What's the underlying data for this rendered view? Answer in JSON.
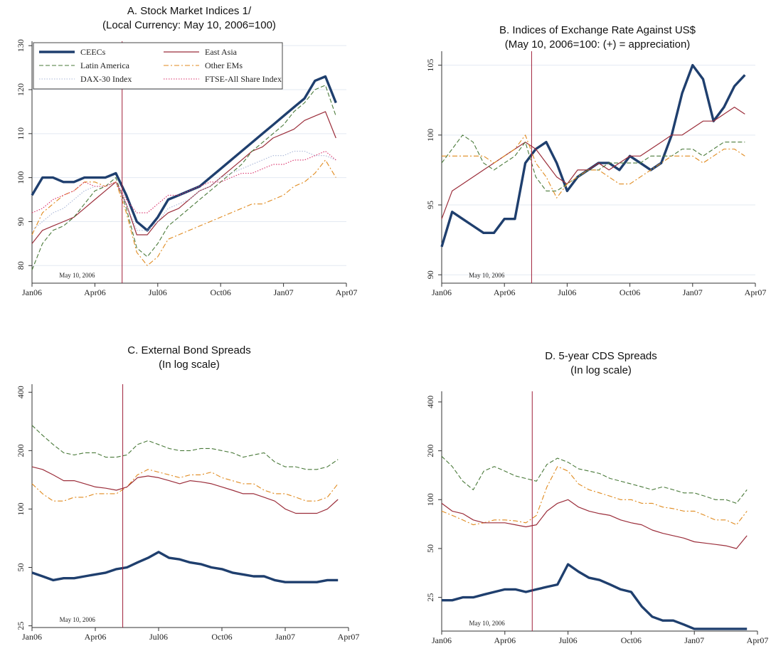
{
  "chart_data": [
    {
      "type": "line",
      "title": "A. Stock Market Indices 1/",
      "subtitle": "(Local Currency: May 10, 2006=100)",
      "x": [
        0,
        0.5,
        1,
        1.5,
        2,
        2.5,
        3,
        3.5,
        4,
        4.5,
        5,
        5.5,
        6,
        6.5,
        7,
        7.5,
        8,
        8.5,
        9,
        9.5,
        10,
        10.5,
        11,
        11.5,
        12,
        12.5,
        13,
        13.5,
        14,
        14.5
      ],
      "xlim": [
        0,
        15
      ],
      "xticks": [
        {
          "value": 0,
          "label": "Jan06"
        },
        {
          "value": 3,
          "label": "Apr06"
        },
        {
          "value": 6,
          "label": "Jul06"
        },
        {
          "value": 9,
          "label": "Oct06"
        },
        {
          "value": 12,
          "label": "Jan07"
        },
        {
          "value": 15,
          "label": "Apr07"
        }
      ],
      "ylim": [
        76,
        131
      ],
      "yticks": [
        80,
        90,
        100,
        110,
        120,
        130
      ],
      "log": false,
      "grid": true,
      "legend": true,
      "event_x": 4.3,
      "event_color": "#a0203a",
      "annotation": "May 10, 2006",
      "series": [
        {
          "name": "CEECs",
          "color": "#1f3f6e",
          "style": "thick",
          "values": [
            96,
            100,
            100,
            99,
            99,
            100,
            100,
            100,
            101,
            96,
            90,
            88,
            91,
            95,
            96,
            97,
            98,
            100,
            102,
            104,
            106,
            108,
            110,
            112,
            114,
            116,
            118,
            122,
            123,
            117
          ]
        },
        {
          "name": "East Asia",
          "color": "#9b2d3a",
          "style": "solid",
          "values": [
            85,
            88,
            89,
            90,
            91,
            93,
            95,
            97,
            99,
            94,
            87,
            87,
            90,
            92,
            93,
            95,
            97,
            98,
            100,
            102,
            104,
            106,
            107,
            109,
            110,
            111,
            113,
            114,
            115,
            109
          ]
        },
        {
          "name": "Latin America",
          "color": "#4a7a3a",
          "style": "dashed",
          "values": [
            79,
            85,
            88,
            89,
            91,
            94,
            97,
            98,
            100,
            93,
            84,
            82,
            85,
            89,
            91,
            93,
            95,
            97,
            99,
            101,
            103,
            106,
            108,
            110,
            112,
            115,
            117,
            120,
            121,
            114
          ]
        },
        {
          "name": "Other EMs",
          "color": "#e08a1e",
          "style": "dashdot",
          "values": [
            87,
            92,
            94,
            96,
            97,
            99,
            99,
            98,
            99,
            92,
            83,
            80,
            82,
            86,
            87,
            88,
            89,
            90,
            91,
            92,
            93,
            94,
            94,
            95,
            96,
            98,
            99,
            101,
            104,
            100
          ]
        },
        {
          "name": "DAX-30 Index",
          "color": "#a9b7d8",
          "style": "dotted",
          "values": [
            88,
            90,
            92,
            93,
            95,
            97,
            98,
            98,
            99,
            94,
            88,
            88,
            90,
            93,
            94,
            95,
            97,
            98,
            100,
            101,
            102,
            103,
            104,
            105,
            105,
            106,
            106,
            105,
            105,
            104
          ]
        },
        {
          "name": "FTSE-All Share Index",
          "color": "#d9306a",
          "style": "dotted",
          "values": [
            92,
            93,
            95,
            96,
            97,
            99,
            98,
            98,
            99,
            95,
            92,
            92,
            94,
            96,
            96,
            97,
            98,
            99,
            99,
            100,
            101,
            101,
            102,
            103,
            103,
            104,
            104,
            105,
            106,
            104
          ]
        }
      ]
    },
    {
      "type": "line",
      "title": "B. Indices of Exchange Rate Against US$",
      "subtitle": "(May 10, 2006=100: (+) = appreciation)",
      "x": [
        0,
        0.5,
        1,
        1.5,
        2,
        2.5,
        3,
        3.5,
        4,
        4.5,
        5,
        5.5,
        6,
        6.5,
        7,
        7.5,
        8,
        8.5,
        9,
        9.5,
        10,
        10.5,
        11,
        11.5,
        12,
        12.5,
        13,
        13.5,
        14,
        14.5
      ],
      "xlim": [
        0,
        15
      ],
      "xticks": [
        {
          "value": 0,
          "label": "Jan06"
        },
        {
          "value": 3,
          "label": "Apr06"
        },
        {
          "value": 6,
          "label": "Jul06"
        },
        {
          "value": 9,
          "label": "Oct06"
        },
        {
          "value": 12,
          "label": "Jan07"
        },
        {
          "value": 15,
          "label": "Apr07"
        }
      ],
      "ylim": [
        89.4,
        106
      ],
      "yticks": [
        90,
        95,
        100,
        105
      ],
      "log": false,
      "grid": true,
      "legend": false,
      "event_x": 4.3,
      "event_color": "#a0203a",
      "annotation": "May 10, 2006",
      "series": [
        {
          "color": "#1f3f6e",
          "style": "thick",
          "values": [
            92,
            94.5,
            94,
            93.5,
            93,
            93,
            94,
            94,
            98,
            99,
            99.5,
            98,
            96,
            97,
            97.5,
            98,
            98,
            97.5,
            98.5,
            98,
            97.5,
            98,
            100,
            103,
            105,
            104,
            101,
            102,
            103.5,
            104.3
          ]
        },
        {
          "color": "#9b2d3a",
          "style": "solid",
          "values": [
            94,
            96,
            96.5,
            97,
            97.5,
            98,
            98.5,
            99,
            99.5,
            99,
            98,
            97,
            96.5,
            97.5,
            97.5,
            98,
            97.5,
            98,
            98.5,
            98.5,
            99,
            99.5,
            100,
            100,
            100.5,
            101,
            101,
            101.5,
            102,
            101.5
          ]
        },
        {
          "color": "#4a7a3a",
          "style": "dashed",
          "values": [
            98,
            99,
            100,
            99.5,
            98,
            97.5,
            98,
            98.5,
            99.5,
            97,
            96,
            96,
            96.5,
            97,
            97.5,
            97.5,
            98,
            98,
            98,
            98,
            98.5,
            98.5,
            98.5,
            99,
            99,
            98.5,
            99,
            99.5,
            99.5,
            99.5
          ]
        },
        {
          "color": "#e08a1e",
          "style": "dashdot",
          "values": [
            98.5,
            98.5,
            98.5,
            98.5,
            98.5,
            98,
            98.5,
            99,
            100,
            98,
            97,
            95.5,
            96.5,
            97,
            97.5,
            97.5,
            97,
            96.5,
            96.5,
            97,
            97.5,
            98,
            98.5,
            98.5,
            98.5,
            98,
            98.5,
            99,
            99,
            98.5
          ]
        }
      ]
    },
    {
      "type": "line",
      "title": "C. External Bond Spreads",
      "subtitle": "(In log scale)",
      "x": [
        0,
        0.5,
        1,
        1.5,
        2,
        2.5,
        3,
        3.5,
        4,
        4.5,
        5,
        5.5,
        6,
        6.5,
        7,
        7.5,
        8,
        8.5,
        9,
        9.5,
        10,
        10.5,
        11,
        11.5,
        12,
        12.5,
        13,
        13.5,
        14,
        14.5
      ],
      "xlim": [
        0,
        15
      ],
      "xticks": [
        {
          "value": 0,
          "label": "Jan06"
        },
        {
          "value": 3,
          "label": "Apr06"
        },
        {
          "value": 6,
          "label": "Jul06"
        },
        {
          "value": 9,
          "label": "Oct06"
        },
        {
          "value": 12,
          "label": "Jan07"
        },
        {
          "value": 15,
          "label": "Apr07"
        }
      ],
      "ylim": [
        24.5,
        440
      ],
      "yticks": [
        25,
        50,
        100,
        200,
        400
      ],
      "log": true,
      "grid": false,
      "legend": false,
      "event_x": 4.3,
      "event_color": "#a0203a",
      "annotation": "May 10, 2006",
      "series": [
        {
          "color": "#4a7a3a",
          "style": "dashed",
          "values": [
            270,
            240,
            215,
            195,
            190,
            195,
            195,
            185,
            185,
            190,
            215,
            225,
            215,
            205,
            200,
            200,
            205,
            205,
            200,
            195,
            185,
            190,
            195,
            175,
            165,
            165,
            160,
            160,
            165,
            180
          ]
        },
        {
          "color": "#e08a1e",
          "style": "dashdot",
          "values": [
            135,
            120,
            110,
            110,
            115,
            115,
            120,
            120,
            120,
            130,
            150,
            160,
            155,
            150,
            145,
            150,
            150,
            155,
            145,
            140,
            135,
            135,
            125,
            120,
            120,
            115,
            110,
            110,
            115,
            135
          ]
        },
        {
          "color": "#9b2d3a",
          "style": "solid",
          "values": [
            165,
            160,
            150,
            140,
            140,
            135,
            130,
            128,
            125,
            130,
            145,
            148,
            145,
            140,
            135,
            140,
            138,
            135,
            130,
            125,
            120,
            120,
            115,
            110,
            100,
            95,
            95,
            95,
            100,
            112
          ]
        },
        {
          "color": "#1f3f6e",
          "style": "thick",
          "values": [
            47,
            45,
            43,
            44,
            44,
            45,
            46,
            47,
            49,
            50,
            53,
            56,
            60,
            56,
            55,
            53,
            52,
            50,
            49,
            47,
            46,
            45,
            45,
            43,
            42,
            42,
            42,
            42,
            43,
            43
          ]
        }
      ]
    },
    {
      "type": "line",
      "title": "D. 5-year CDS Spreads",
      "subtitle": "(In log scale)",
      "x": [
        0,
        0.5,
        1,
        1.5,
        2,
        2.5,
        3,
        3.5,
        4,
        4.5,
        5,
        5.5,
        6,
        6.5,
        7,
        7.5,
        8,
        8.5,
        9,
        9.5,
        10,
        10.5,
        11,
        11.5,
        12,
        12.5,
        13,
        13.5,
        14,
        14.5
      ],
      "xlim": [
        0,
        15
      ],
      "xticks": [
        {
          "value": 0,
          "label": "Jan06"
        },
        {
          "value": 3,
          "label": "Apr06"
        },
        {
          "value": 6,
          "label": "Jul06"
        },
        {
          "value": 9,
          "label": "Oct06"
        },
        {
          "value": 12,
          "label": "Jan07"
        },
        {
          "value": 15,
          "label": "Apr07"
        }
      ],
      "ylim": [
        15.5,
        465
      ],
      "yticks": [
        25,
        50,
        100,
        200,
        400
      ],
      "log": true,
      "grid": false,
      "legend": false,
      "event_x": 4.3,
      "event_color": "#a0203a",
      "annotation": "May 10, 2006",
      "series": [
        {
          "color": "#4a7a3a",
          "style": "dashed",
          "values": [
            185,
            160,
            130,
            115,
            150,
            160,
            150,
            140,
            135,
            130,
            165,
            180,
            170,
            155,
            150,
            145,
            135,
            130,
            125,
            120,
            115,
            120,
            115,
            110,
            110,
            105,
            100,
            100,
            95,
            115
          ]
        },
        {
          "color": "#e08a1e",
          "style": "dashdot",
          "values": [
            85,
            80,
            75,
            70,
            72,
            75,
            75,
            74,
            72,
            80,
            120,
            160,
            150,
            125,
            115,
            110,
            105,
            100,
            100,
            95,
            95,
            90,
            88,
            85,
            85,
            80,
            75,
            75,
            70,
            85
          ]
        },
        {
          "color": "#9b2d3a",
          "style": "solid",
          "values": [
            95,
            85,
            82,
            75,
            72,
            72,
            72,
            70,
            68,
            70,
            85,
            95,
            100,
            90,
            85,
            82,
            80,
            75,
            72,
            70,
            65,
            62,
            60,
            58,
            55,
            54,
            53,
            52,
            50,
            60
          ]
        },
        {
          "color": "#1f3f6e",
          "style": "thick",
          "values": [
            24,
            24,
            25,
            25,
            26,
            27,
            28,
            28,
            27,
            28,
            29,
            30,
            40,
            36,
            33,
            32,
            30,
            28,
            27,
            22,
            19,
            18,
            18,
            17,
            16,
            16,
            16,
            16,
            16,
            16
          ]
        }
      ]
    }
  ]
}
